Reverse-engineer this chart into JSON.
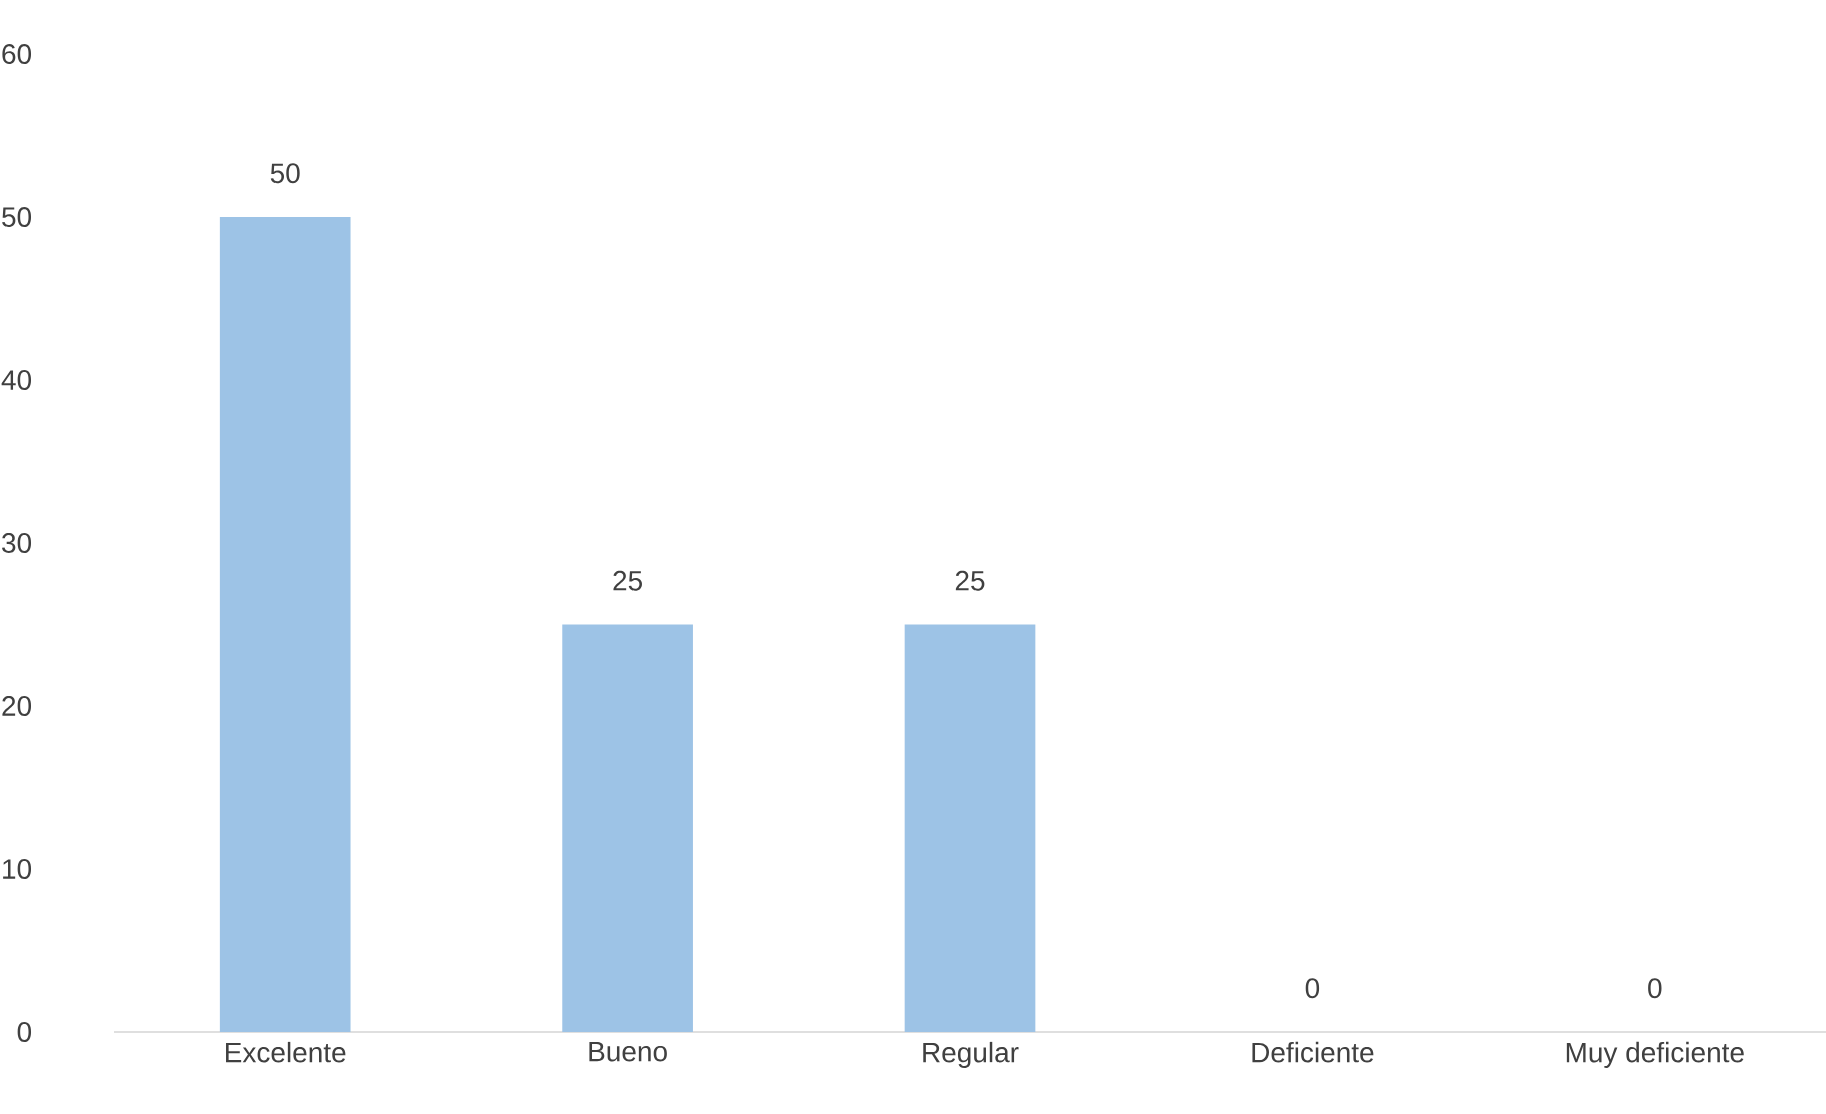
{
  "chart_data": {
    "type": "bar",
    "categories": [
      "Excelente",
      "Bueno",
      "Regular",
      "Deficiente",
      "Muy deficiente"
    ],
    "values": [
      50,
      25,
      25,
      0,
      0
    ],
    "color": "#9dc3e6",
    "ylim": [
      0,
      60
    ],
    "yticks": [
      0,
      10,
      20,
      30,
      40,
      50,
      60
    ],
    "data_labels": true
  }
}
